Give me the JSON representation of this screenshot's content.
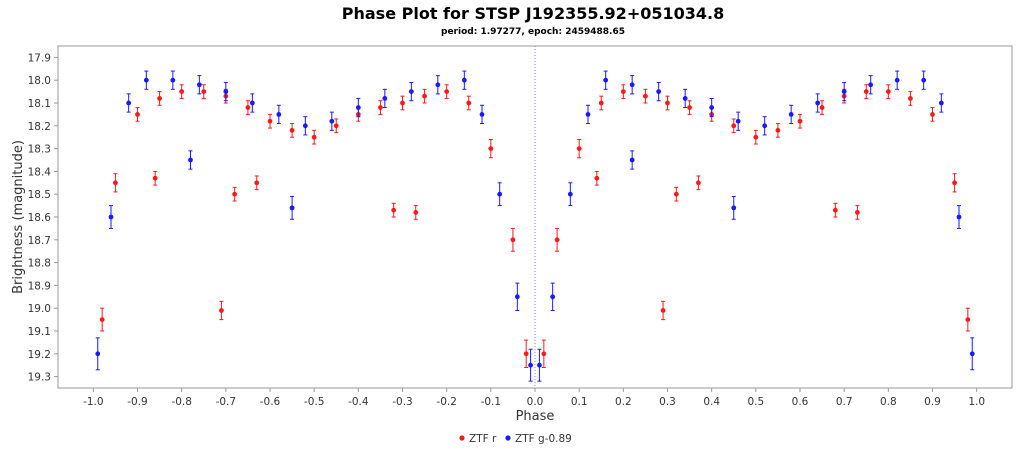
{
  "chart_data": {
    "type": "scatter",
    "title": "Phase Plot for STSP J192355.92+051034.8",
    "subtitle": "period: 1.97277, epoch: 2459488.65",
    "xlabel": "Phase",
    "ylabel": "Brightness (magnitude)",
    "xlim": [
      -1.08,
      1.08
    ],
    "ylim": [
      17.85,
      19.35
    ],
    "y_inverted": true,
    "x_ticks": [
      -1.0,
      -0.9,
      -0.8,
      -0.7,
      -0.6,
      -0.5,
      -0.4,
      -0.3,
      -0.2,
      -0.1,
      0.0,
      0.1,
      0.2,
      0.3,
      0.4,
      0.5,
      0.6,
      0.7,
      0.8,
      0.9,
      1.0
    ],
    "x_tick_labels": [
      "-1.0",
      "-0.9",
      "-0.8",
      "-0.7",
      "-0.6",
      "-0.5",
      "-0.4",
      "-0.3",
      "-0.2",
      "-0.1",
      "0.0",
      "0.1",
      "0.2",
      "0.3",
      "0.4",
      "0.5",
      "0.6",
      "0.7",
      "0.8",
      "0.9",
      "1.0"
    ],
    "y_ticks": [
      17.9,
      18.0,
      18.1,
      18.2,
      18.3,
      18.4,
      18.5,
      18.6,
      18.7,
      18.8,
      18.9,
      19.0,
      19.1,
      19.2,
      19.3
    ],
    "y_tick_labels": [
      "17.9",
      "18.0",
      "18.1",
      "18.2",
      "18.3",
      "18.4",
      "18.5",
      "18.6",
      "18.7",
      "18.8",
      "18.9",
      "19.0",
      "19.1",
      "19.2",
      "19.3"
    ],
    "reference_line_x": 0.0,
    "grid": false,
    "legend_position": "bottom-center",
    "colors": {
      "ztf_r": "#ff1a1a",
      "ztf_g": "#1a1aff",
      "frame": "#999999",
      "ref_line": "#8080ff"
    },
    "series": [
      {
        "name": "ZTF r",
        "color": "#ff1a1a",
        "x": [
          -0.98,
          -0.95,
          -0.9,
          -0.85,
          -0.8,
          -0.75,
          -0.7,
          -0.65,
          -0.6,
          -0.55,
          -0.5,
          -0.45,
          -0.4,
          -0.35,
          -0.3,
          -0.25,
          -0.2,
          -0.15,
          -0.1,
          -0.05,
          -0.02,
          0.02,
          0.05,
          0.1,
          0.15,
          0.2,
          0.25,
          0.3,
          0.35,
          0.4,
          0.45,
          0.5,
          0.55,
          0.6,
          0.65,
          0.7,
          0.75,
          0.8,
          0.85,
          0.9,
          0.95,
          0.98,
          -0.71,
          0.29,
          -0.68,
          0.32,
          -0.32,
          0.68,
          -0.27,
          0.73,
          -0.86,
          0.14,
          -0.63,
          0.37
        ],
        "y": [
          19.05,
          18.45,
          18.15,
          18.08,
          18.05,
          18.05,
          18.07,
          18.12,
          18.18,
          18.22,
          18.25,
          18.2,
          18.15,
          18.12,
          18.1,
          18.07,
          18.05,
          18.1,
          18.3,
          18.7,
          19.2,
          19.2,
          18.7,
          18.3,
          18.1,
          18.05,
          18.07,
          18.1,
          18.12,
          18.15,
          18.2,
          18.25,
          18.22,
          18.18,
          18.12,
          18.07,
          18.05,
          18.05,
          18.08,
          18.15,
          18.45,
          19.05,
          19.01,
          19.01,
          18.5,
          18.5,
          18.57,
          18.57,
          18.58,
          18.58,
          18.43,
          18.43,
          18.45,
          18.45
        ],
        "err": [
          0.05,
          0.04,
          0.03,
          0.03,
          0.03,
          0.03,
          0.03,
          0.03,
          0.03,
          0.03,
          0.03,
          0.03,
          0.03,
          0.03,
          0.03,
          0.03,
          0.03,
          0.03,
          0.04,
          0.05,
          0.06,
          0.06,
          0.05,
          0.04,
          0.03,
          0.03,
          0.03,
          0.03,
          0.03,
          0.03,
          0.03,
          0.03,
          0.03,
          0.03,
          0.03,
          0.03,
          0.03,
          0.03,
          0.03,
          0.03,
          0.04,
          0.05,
          0.04,
          0.04,
          0.03,
          0.03,
          0.03,
          0.03,
          0.03,
          0.03,
          0.03,
          0.03,
          0.03,
          0.03
        ]
      },
      {
        "name": "ZTF g-0.89",
        "color": "#1a1aff",
        "x": [
          -0.99,
          -0.96,
          -0.92,
          -0.88,
          -0.82,
          -0.76,
          -0.7,
          -0.64,
          -0.58,
          -0.52,
          -0.46,
          -0.4,
          -0.34,
          -0.28,
          -0.22,
          -0.16,
          -0.12,
          -0.08,
          -0.04,
          -0.01,
          0.01,
          0.04,
          0.08,
          0.12,
          0.16,
          0.22,
          0.28,
          0.34,
          0.4,
          0.46,
          0.52,
          0.58,
          0.64,
          0.7,
          0.76,
          0.82,
          0.88,
          0.92,
          0.96,
          0.99,
          -0.55,
          0.45,
          -0.78,
          0.22
        ],
        "y": [
          19.2,
          18.6,
          18.1,
          18.0,
          18.0,
          18.02,
          18.05,
          18.1,
          18.15,
          18.2,
          18.18,
          18.12,
          18.08,
          18.05,
          18.02,
          18.0,
          18.15,
          18.5,
          18.95,
          19.25,
          19.25,
          18.95,
          18.5,
          18.15,
          18.0,
          18.02,
          18.05,
          18.08,
          18.12,
          18.18,
          18.2,
          18.15,
          18.1,
          18.05,
          18.02,
          18.0,
          18.0,
          18.1,
          18.6,
          19.2,
          18.56,
          18.56,
          18.35,
          18.35
        ],
        "err": [
          0.07,
          0.05,
          0.04,
          0.04,
          0.04,
          0.04,
          0.04,
          0.04,
          0.04,
          0.04,
          0.04,
          0.04,
          0.04,
          0.04,
          0.04,
          0.04,
          0.04,
          0.05,
          0.06,
          0.07,
          0.07,
          0.06,
          0.05,
          0.04,
          0.04,
          0.04,
          0.04,
          0.04,
          0.04,
          0.04,
          0.04,
          0.04,
          0.04,
          0.04,
          0.04,
          0.04,
          0.04,
          0.04,
          0.05,
          0.07,
          0.05,
          0.05,
          0.04,
          0.04
        ]
      }
    ]
  }
}
